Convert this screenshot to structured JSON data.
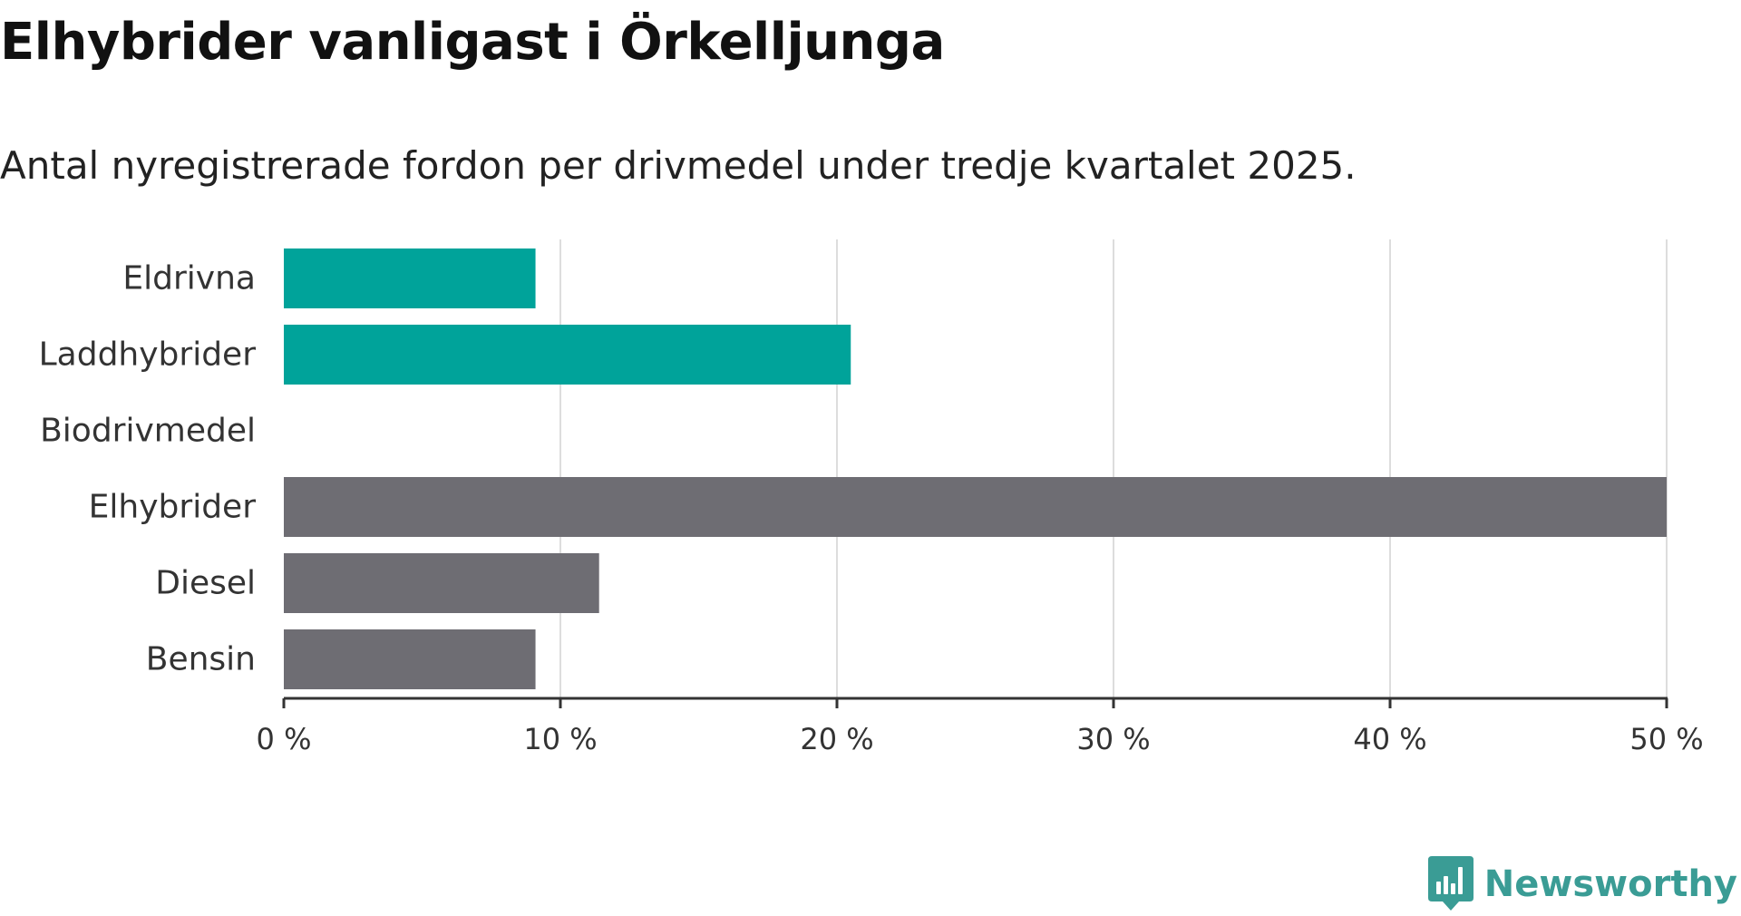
{
  "chart_data": {
    "type": "bar",
    "orientation": "horizontal",
    "title": "Elhybrider vanligast i Örkelljunga",
    "subtitle": "Antal nyregistrerade fordon per drivmedel under tredje kvartalet 2025.",
    "categories": [
      "Eldrivna",
      "Laddhybrider",
      "Biodrivmedel",
      "Elhybrider",
      "Diesel",
      "Bensin"
    ],
    "values": [
      9.1,
      20.5,
      0,
      50.0,
      11.4,
      9.1
    ],
    "bar_colors": [
      "#00a39a",
      "#00a39a",
      "#00a39a",
      "#6e6d73",
      "#6e6d73",
      "#6e6d73"
    ],
    "xlim": [
      0,
      50
    ],
    "xticks": [
      0,
      10,
      20,
      30,
      40,
      50
    ],
    "xtick_labels": [
      "0 %",
      "10 %",
      "20 %",
      "30 %",
      "40 %",
      "50 %"
    ],
    "xlabel": "",
    "ylabel": "",
    "grid": "vertical"
  },
  "brand": {
    "name": "Newsworthy",
    "icon": "newsworthy-logo-icon",
    "color": "#3a9c95"
  },
  "colors": {
    "gridline": "#dddddd",
    "axis": "#333333"
  }
}
